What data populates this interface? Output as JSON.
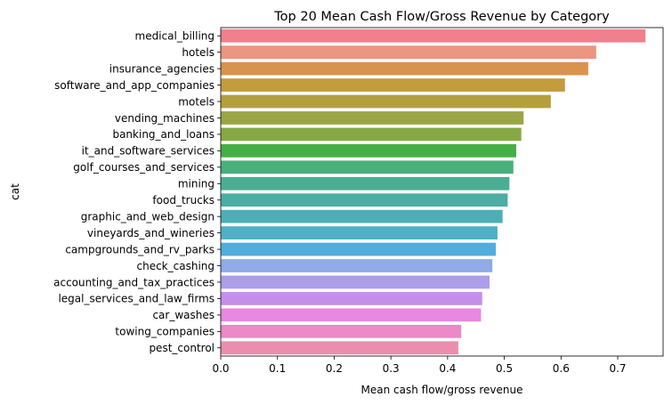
{
  "chart_data": {
    "type": "bar",
    "orientation": "horizontal",
    "title": "Top 20 Mean Cash Flow/Gross Revenue by Category",
    "xlabel": "Mean cash flow/gross revenue",
    "ylabel": "cat",
    "xlim": [
      0,
      0.78
    ],
    "xticks": [
      0.0,
      0.1,
      0.2,
      0.3,
      0.4,
      0.5,
      0.6,
      0.7
    ],
    "xtick_labels": [
      "0.0",
      "0.1",
      "0.2",
      "0.3",
      "0.4",
      "0.5",
      "0.6",
      "0.7"
    ],
    "grid": false,
    "categories": [
      "medical_billing",
      "hotels",
      "insurance_agencies",
      "software_and_app_companies",
      "motels",
      "vending_machines",
      "banking_and_loans",
      "it_and_software_services",
      "golf_courses_and_services",
      "mining",
      "food_trucks",
      "graphic_and_web_design",
      "vineyards_and_wineries",
      "campgrounds_and_rv_parks",
      "check_cashing",
      "accounting_and_tax_practices",
      "legal_services_and_law_firms",
      "car_washes",
      "towing_companies",
      "pest_control"
    ],
    "values": [
      0.749,
      0.662,
      0.648,
      0.607,
      0.582,
      0.534,
      0.53,
      0.521,
      0.516,
      0.509,
      0.506,
      0.497,
      0.488,
      0.485,
      0.479,
      0.474,
      0.461,
      0.459,
      0.424,
      0.419
    ],
    "colors": [
      "#f0808e",
      "#ec9580",
      "#d8944e",
      "#c39c3d",
      "#b39f3b",
      "#9ba543",
      "#86a944",
      "#45ae45",
      "#48b07a",
      "#4bae94",
      "#4bada4",
      "#4dafb5",
      "#4fb0c6",
      "#51addb",
      "#8fabe8",
      "#ad9ee9",
      "#c48fe8",
      "#e888e1",
      "#ea89c6",
      "#ed8dae"
    ]
  }
}
